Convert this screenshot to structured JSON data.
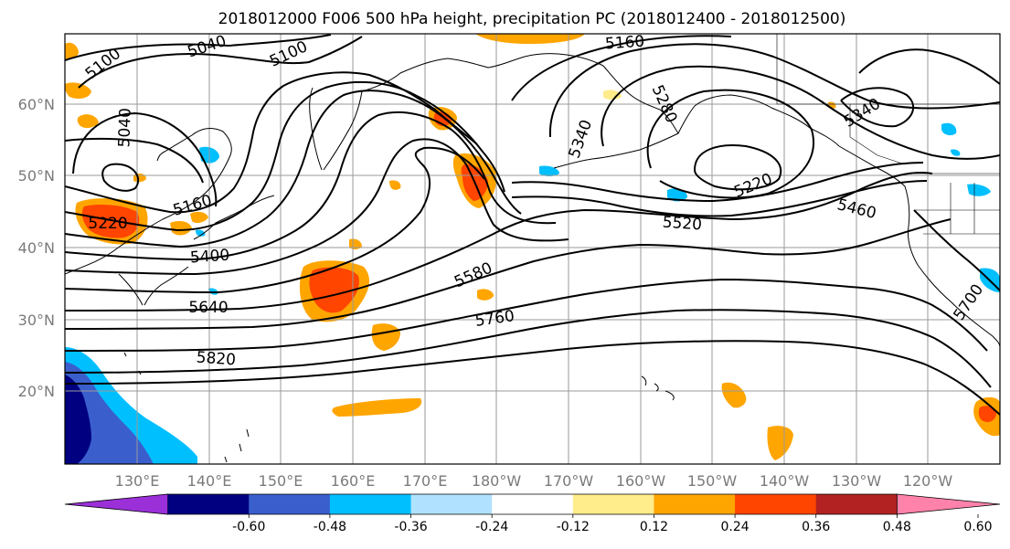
{
  "title": "2018012000 F006 500 hPa height, precipitation PC (2018012400 - 2018012500)",
  "lat_labels": [
    "60°N",
    "50°N",
    "40°N",
    "30°N",
    "20°N"
  ],
  "lon_labels": [
    "130°E",
    "140°E",
    "150°E",
    "160°E",
    "170°E",
    "180°W",
    "170°W",
    "160°W",
    "150°W",
    "140°W",
    "130°W",
    "120°W"
  ],
  "contour_labels": [
    {
      "text": "5100"
    },
    {
      "text": "5040"
    },
    {
      "text": "5100"
    },
    {
      "text": "5160"
    },
    {
      "text": "5040"
    },
    {
      "text": "5220"
    },
    {
      "text": "5160"
    },
    {
      "text": "5400"
    },
    {
      "text": "5640"
    },
    {
      "text": "5820"
    },
    {
      "text": "5340"
    },
    {
      "text": "5280"
    },
    {
      "text": "5580"
    },
    {
      "text": "5760"
    },
    {
      "text": "5520"
    },
    {
      "text": "5220"
    },
    {
      "text": "5460"
    },
    {
      "text": "5340"
    },
    {
      "text": "5700"
    }
  ],
  "colorbar": {
    "colors": [
      "#9b30d9",
      "#000080",
      "#3a5fcd",
      "#00bfff",
      "#b0e2ff",
      "#ffffff",
      "#ffec8b",
      "#ffa500",
      "#ff4500",
      "#b22222",
      "#ff82ab"
    ],
    "labels": [
      "-0.60",
      "-0.48",
      "-0.36",
      "-0.24",
      "-0.12",
      "0.12",
      "0.24",
      "0.36",
      "0.48",
      "0.60"
    ]
  },
  "precip_colors": {
    "light_pos": "#ffec8b",
    "pos": "#ffa500",
    "strong_pos": "#ff4500",
    "light_neg": "#b0e2ff",
    "neg": "#00bfff",
    "strong_neg": "#3a5fcd",
    "very_neg": "#000080"
  }
}
